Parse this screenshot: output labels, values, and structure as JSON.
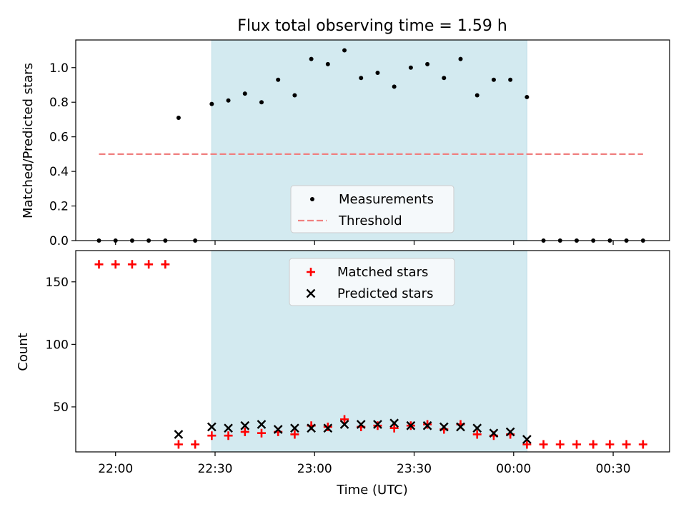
{
  "chart_data": [
    {
      "type": "scatter",
      "title": "Flux total observing time = 1.59 h",
      "xlabel": "",
      "ylabel": "Matched/Predicted stars",
      "ylim": [
        0,
        1.16
      ],
      "y_ticks": [
        "0.0",
        "0.2",
        "0.4",
        "0.6",
        "0.8",
        "1.0"
      ],
      "grid": false,
      "legend_position": "bottom-center",
      "observing_window": {
        "start": "22:29",
        "end": "00:04"
      },
      "threshold": {
        "name": "Threshold",
        "value": 0.5,
        "x_start": "21:55",
        "x_end": "00:39",
        "color": "#f08080"
      },
      "series": [
        {
          "name": "Measurements",
          "marker": "dot",
          "color": "#000000",
          "points": [
            [
              "21:55",
              0.0
            ],
            [
              "22:00",
              0.0
            ],
            [
              "22:05",
              0.0
            ],
            [
              "22:10",
              0.0
            ],
            [
              "22:15",
              0.0
            ],
            [
              "22:19",
              0.71
            ],
            [
              "22:24",
              0.0
            ],
            [
              "22:29",
              0.79
            ],
            [
              "22:34",
              0.81
            ],
            [
              "22:39",
              0.85
            ],
            [
              "22:44",
              0.8
            ],
            [
              "22:49",
              0.93
            ],
            [
              "22:54",
              0.84
            ],
            [
              "22:59",
              1.05
            ],
            [
              "23:04",
              1.02
            ],
            [
              "23:09",
              1.1
            ],
            [
              "23:14",
              0.94
            ],
            [
              "23:19",
              0.97
            ],
            [
              "23:24",
              0.89
            ],
            [
              "23:29",
              1.0
            ],
            [
              "23:34",
              1.02
            ],
            [
              "23:39",
              0.94
            ],
            [
              "23:44",
              1.05
            ],
            [
              "23:49",
              0.84
            ],
            [
              "23:54",
              0.93
            ],
            [
              "23:59",
              0.93
            ],
            [
              "00:04",
              0.83
            ],
            [
              "00:09",
              0.0
            ],
            [
              "00:14",
              0.0
            ],
            [
              "00:19",
              0.0
            ],
            [
              "00:24",
              0.0
            ],
            [
              "00:29",
              0.0
            ],
            [
              "00:34",
              0.0
            ],
            [
              "00:39",
              0.0
            ]
          ]
        }
      ],
      "legend": [
        "Measurements",
        "Threshold"
      ]
    },
    {
      "type": "scatter",
      "title": "",
      "xlabel": "Time (UTC)",
      "ylabel": "Count",
      "ylim": [
        14,
        175
      ],
      "y_ticks": [
        "50",
        "100",
        "150"
      ],
      "x_ticks": [
        "22:00",
        "22:30",
        "23:00",
        "23:30",
        "00:00",
        "00:30"
      ],
      "xlim": [
        "21:48",
        "00:47"
      ],
      "grid": false,
      "legend_position": "top-center",
      "series": [
        {
          "name": "Matched stars",
          "marker": "plus",
          "color": "#ff0000",
          "points": [
            [
              "21:55",
              164
            ],
            [
              "22:00",
              164
            ],
            [
              "22:05",
              164
            ],
            [
              "22:10",
              164
            ],
            [
              "22:15",
              164
            ],
            [
              "22:19",
              20
            ],
            [
              "22:24",
              20
            ],
            [
              "22:29",
              27
            ],
            [
              "22:34",
              27
            ],
            [
              "22:39",
              30
            ],
            [
              "22:44",
              29
            ],
            [
              "22:49",
              30
            ],
            [
              "22:54",
              28
            ],
            [
              "22:59",
              35
            ],
            [
              "23:04",
              34
            ],
            [
              "23:09",
              40
            ],
            [
              "23:14",
              34
            ],
            [
              "23:19",
              35
            ],
            [
              "23:24",
              33
            ],
            [
              "23:29",
              35
            ],
            [
              "23:34",
              36
            ],
            [
              "23:39",
              32
            ],
            [
              "23:44",
              36
            ],
            [
              "23:49",
              28
            ],
            [
              "23:54",
              27
            ],
            [
              "23:59",
              28
            ],
            [
              "00:04",
              20
            ],
            [
              "00:09",
              20
            ],
            [
              "00:14",
              20
            ],
            [
              "00:19",
              20
            ],
            [
              "00:24",
              20
            ],
            [
              "00:29",
              20
            ],
            [
              "00:34",
              20
            ],
            [
              "00:39",
              20
            ]
          ]
        },
        {
          "name": "Predicted stars",
          "marker": "x",
          "color": "#000000",
          "points": [
            [
              "22:19",
              28
            ],
            [
              "22:29",
              34
            ],
            [
              "22:34",
              33
            ],
            [
              "22:39",
              35
            ],
            [
              "22:44",
              36
            ],
            [
              "22:49",
              32
            ],
            [
              "22:54",
              33
            ],
            [
              "22:59",
              33
            ],
            [
              "23:04",
              33
            ],
            [
              "23:09",
              36
            ],
            [
              "23:14",
              36
            ],
            [
              "23:19",
              36
            ],
            [
              "23:24",
              37
            ],
            [
              "23:29",
              35
            ],
            [
              "23:34",
              35
            ],
            [
              "23:39",
              34
            ],
            [
              "23:44",
              34
            ],
            [
              "23:49",
              33
            ],
            [
              "23:54",
              29
            ],
            [
              "23:59",
              30
            ],
            [
              "00:04",
              24
            ]
          ]
        }
      ],
      "legend": [
        "Matched stars",
        "Predicted stars"
      ]
    }
  ],
  "colors": {
    "observing_window": "#d3eaf0",
    "observing_window_edge": "#bcdde6",
    "legend_bg": "#f5f9fb"
  }
}
